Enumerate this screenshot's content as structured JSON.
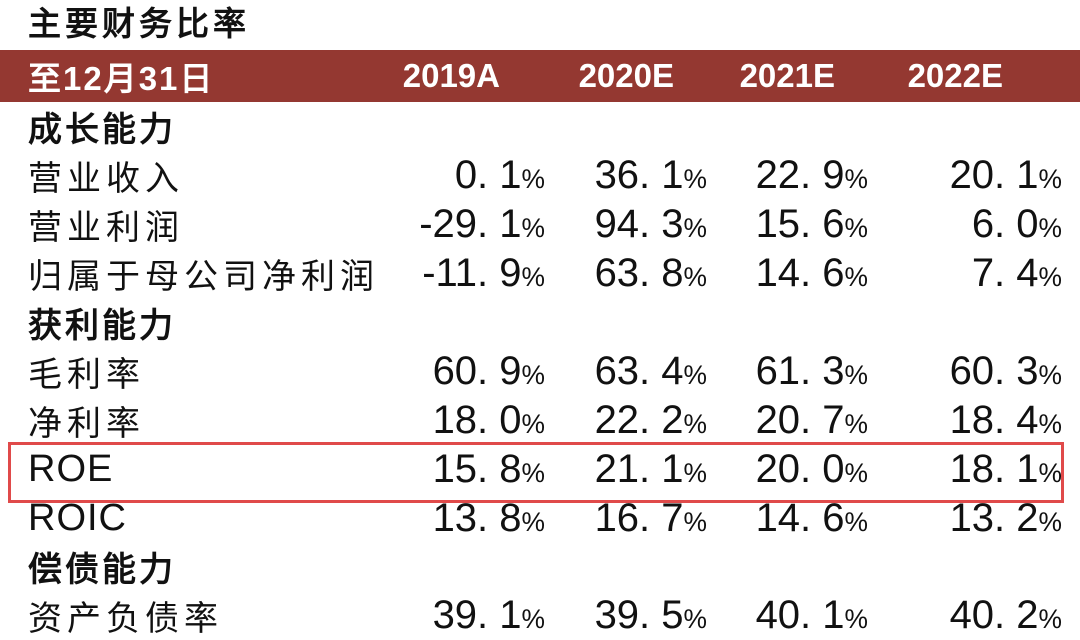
{
  "page": {
    "title": "主要财务比率"
  },
  "colors": {
    "header_bg": "#943831",
    "header_text": "#ffffff",
    "highlight_box": "#e04a4a",
    "text": "#111111",
    "background": "#ffffff"
  },
  "table": {
    "columns": [
      "至12月31日",
      "2019A",
      "2020E",
      "2021E",
      "2022E"
    ],
    "rows": [
      {
        "type": "section",
        "label": "成长能力"
      },
      {
        "type": "data",
        "label": "营业收入",
        "values": [
          "0. 1%",
          "36. 1%",
          "22. 9%",
          "20. 1%"
        ]
      },
      {
        "type": "data",
        "label": "营业利润",
        "values": [
          "-29. 1%",
          "94. 3%",
          "15. 6%",
          "6. 0%"
        ]
      },
      {
        "type": "data",
        "label": "归属于母公司净利润",
        "values": [
          "-11. 9%",
          "63. 8%",
          "14. 6%",
          "7. 4%"
        ]
      },
      {
        "type": "section",
        "label": "获利能力"
      },
      {
        "type": "data",
        "label": "毛利率",
        "values": [
          "60. 9%",
          "63. 4%",
          "61. 3%",
          "60. 3%"
        ]
      },
      {
        "type": "data",
        "label": "净利率",
        "values": [
          "18. 0%",
          "22. 2%",
          "20. 7%",
          "18. 4%"
        ]
      },
      {
        "type": "data",
        "label": "ROE",
        "highlighted": true,
        "values": [
          "15. 8%",
          "21. 1%",
          "20. 0%",
          "18. 1%"
        ]
      },
      {
        "type": "data",
        "label": "ROIC",
        "values": [
          "13. 8%",
          "16. 7%",
          "14. 6%",
          "13. 2%"
        ]
      },
      {
        "type": "section",
        "label": "偿债能力"
      },
      {
        "type": "data",
        "label": "资产负债率",
        "values": [
          "39. 1%",
          "39. 5%",
          "40. 1%",
          "40. 2%"
        ]
      }
    ]
  }
}
